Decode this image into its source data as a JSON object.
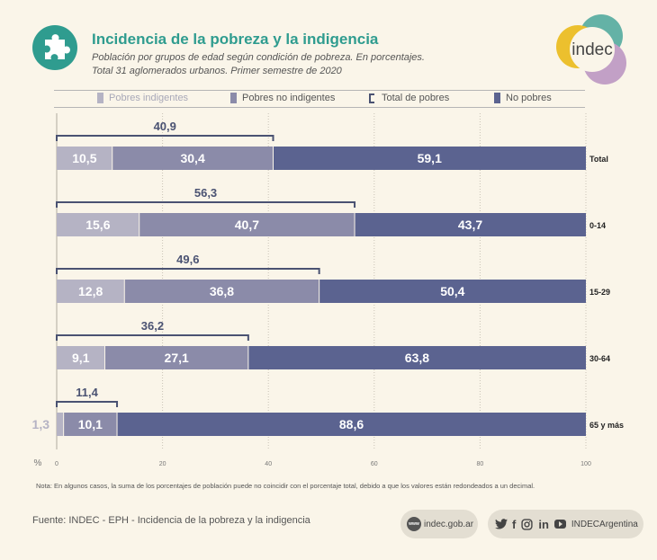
{
  "header": {
    "title": "Incidencia de la pobreza y la indigencia",
    "subtitle_line1": "Población por grupos de edad según condición de pobreza. En porcentajes.",
    "subtitle_line2": "Total 31 aglomerados urbanos. Primer semestre de 2020",
    "logo_text": "indec"
  },
  "legend": {
    "items": [
      {
        "label": "Pobres indigentes",
        "color": "#b5b3c4"
      },
      {
        "label": "Pobres no indigentes",
        "color": "#8b8ba9"
      },
      {
        "label": "Total de pobres",
        "color": "#4a5272"
      },
      {
        "label": "No pobres",
        "color": "#5b6390"
      }
    ]
  },
  "chart_data": {
    "type": "bar",
    "orientation": "horizontal",
    "stacked": true,
    "categories": [
      "Total",
      "0-14",
      "15-29",
      "30-64",
      "65 y más"
    ],
    "series": [
      {
        "name": "Pobres indigentes",
        "values": [
          10.5,
          15.6,
          12.8,
          9.1,
          1.3
        ],
        "labels": [
          "10,5",
          "15,6",
          "12,8",
          "9,1",
          "1,3"
        ],
        "color": "#b5b3c4"
      },
      {
        "name": "Pobres no indigentes",
        "values": [
          30.4,
          40.7,
          36.8,
          27.1,
          10.1
        ],
        "labels": [
          "30,4",
          "40,7",
          "36,8",
          "27,1",
          "10,1"
        ],
        "color": "#8b8ba9"
      },
      {
        "name": "No pobres",
        "values": [
          59.1,
          43.7,
          50.4,
          63.8,
          88.6
        ],
        "labels": [
          "59,1",
          "43,7",
          "50,4",
          "63,8",
          "88,6"
        ],
        "color": "#5b6390"
      }
    ],
    "total_pobres": {
      "name": "Total de pobres",
      "values": [
        40.9,
        56.3,
        49.6,
        36.2,
        11.4
      ],
      "labels": [
        "40,9",
        "56,3",
        "49,6",
        "36,2",
        "11,4"
      ],
      "color": "#4a5272"
    },
    "xlabel": "%",
    "xlim": [
      0,
      100
    ],
    "xticks": [
      0,
      20,
      40,
      60,
      80,
      100
    ],
    "xtick_labels": [
      "0",
      "20",
      "40",
      "60",
      "80",
      "100"
    ],
    "grid": "vertical dotted",
    "legend_position": "top"
  },
  "footer": {
    "note": "Nota: En algunos casos, la suma de los porcentajes de población puede no coincidir con el porcentaje total, debido a que los valores están redondeados a un decimal.",
    "source": "Fuente: INDEC - EPH - Incidencia de la pobreza y la indigencia",
    "web_icon_text": "www",
    "website": "indec.gob.ar",
    "social_icons": [
      "twitter-icon",
      "facebook-icon",
      "instagram-icon",
      "linkedin-icon",
      "youtube-icon"
    ],
    "social_handle": "INDECArgentina"
  }
}
